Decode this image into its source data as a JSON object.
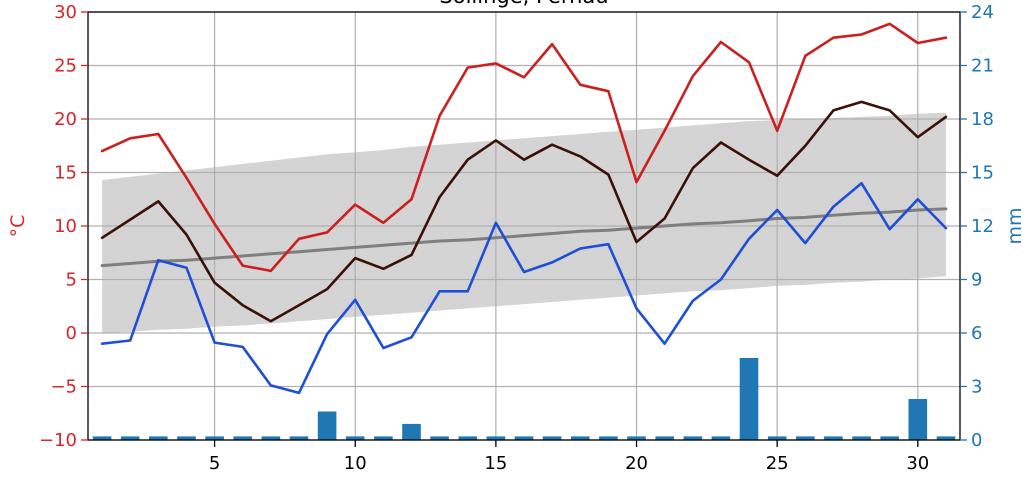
{
  "chart_data": {
    "type": "line",
    "title": "Söllinge, Pernau",
    "xlabel": "",
    "ylabel_left": "°C",
    "ylabel_right": "mm",
    "xlim": [
      0.5,
      31.5
    ],
    "ylim_left": [
      -10,
      30
    ],
    "ylim_right": [
      0,
      24
    ],
    "x_ticks": [
      5,
      10,
      15,
      20,
      25,
      30
    ],
    "y_ticks_left": [
      -10,
      -5,
      0,
      5,
      10,
      15,
      20,
      25,
      30
    ],
    "y_ticks_right": [
      0,
      3,
      6,
      9,
      12,
      15,
      18,
      21,
      24
    ],
    "grid": true,
    "x": [
      1,
      2,
      3,
      4,
      5,
      6,
      7,
      8,
      9,
      10,
      11,
      12,
      13,
      14,
      15,
      16,
      17,
      18,
      19,
      20,
      21,
      22,
      23,
      24,
      25,
      26,
      27,
      28,
      29,
      30,
      31
    ],
    "series": [
      {
        "key": "tmax",
        "axis": "left",
        "color": "#cc1f1f",
        "values": [
          17.0,
          18.2,
          18.6,
          14.5,
          10.2,
          6.3,
          5.8,
          8.8,
          9.4,
          12.0,
          10.3,
          12.5,
          20.3,
          24.8,
          25.2,
          23.9,
          27.0,
          23.2,
          22.6,
          14.1,
          18.9,
          24.0,
          27.2,
          25.3,
          18.9,
          25.9,
          27.6,
          27.9,
          28.9,
          27.1,
          27.6
        ]
      },
      {
        "key": "tmean",
        "axis": "left",
        "color": "#3a1205",
        "values": [
          8.9,
          10.6,
          12.3,
          9.2,
          4.7,
          2.6,
          1.1,
          2.6,
          4.1,
          7.0,
          6.0,
          7.3,
          12.7,
          16.2,
          18.0,
          16.2,
          17.6,
          16.5,
          14.8,
          8.5,
          10.7,
          15.4,
          17.8,
          16.2,
          14.7,
          17.5,
          20.8,
          21.6,
          20.8,
          18.3,
          20.2
        ]
      },
      {
        "key": "tmin",
        "axis": "left",
        "color": "#1f4fd6",
        "values": [
          -1.0,
          -0.7,
          6.8,
          6.1,
          -0.9,
          -1.3,
          -4.9,
          -5.6,
          -0.1,
          3.1,
          -1.4,
          -0.4,
          3.9,
          3.9,
          10.3,
          5.7,
          6.6,
          7.9,
          8.3,
          2.3,
          -1.0,
          3.0,
          5.0,
          8.8,
          11.5,
          8.4,
          11.8,
          14.0,
          9.7,
          12.5,
          9.8
        ]
      },
      {
        "key": "normal_mean",
        "axis": "left",
        "color": "#7f7f7f",
        "values": [
          6.3,
          6.5,
          6.7,
          6.8,
          7.0,
          7.2,
          7.4,
          7.6,
          7.8,
          8.0,
          8.2,
          8.4,
          8.6,
          8.7,
          8.9,
          9.1,
          9.3,
          9.5,
          9.6,
          9.8,
          10.0,
          10.2,
          10.3,
          10.5,
          10.7,
          10.8,
          11.0,
          11.2,
          11.3,
          11.5,
          11.6
        ]
      },
      {
        "key": "normal_low",
        "axis": "left",
        "band": true,
        "color": "#d4d4d4",
        "values": [
          0.0,
          0.1,
          0.3,
          0.4,
          0.6,
          0.7,
          0.9,
          1.1,
          1.3,
          1.5,
          1.7,
          1.9,
          2.1,
          2.3,
          2.5,
          2.7,
          2.9,
          3.1,
          3.3,
          3.5,
          3.7,
          3.9,
          4.0,
          4.2,
          4.4,
          4.5,
          4.7,
          4.8,
          5.0,
          5.1,
          5.3
        ]
      },
      {
        "key": "normal_high",
        "axis": "left",
        "band": true,
        "color": "#d4d4d4",
        "values": [
          14.3,
          14.6,
          14.9,
          15.2,
          15.5,
          15.8,
          16.1,
          16.4,
          16.7,
          16.9,
          17.1,
          17.4,
          17.6,
          17.8,
          18.0,
          18.2,
          18.4,
          18.6,
          18.8,
          19.0,
          19.2,
          19.4,
          19.6,
          19.8,
          19.9,
          20.0,
          20.1,
          20.2,
          20.3,
          20.5,
          20.6
        ]
      },
      {
        "key": "precipitation",
        "axis": "right",
        "type": "bar",
        "color": "#1f77b4",
        "values": [
          0.2,
          0.2,
          0.2,
          0.2,
          0.2,
          0.2,
          0.2,
          0.2,
          1.6,
          0.2,
          0.2,
          0.9,
          0.2,
          0.2,
          0.2,
          0.2,
          0.2,
          0.2,
          0.2,
          0.2,
          0.2,
          0.2,
          0.2,
          4.6,
          0.2,
          0.2,
          0.2,
          0.2,
          0.2,
          2.3,
          0.2
        ]
      }
    ]
  },
  "colors": {
    "left_axis": "#d62728",
    "right_axis": "#1f77b4",
    "grid": "#b0b0b0",
    "frame": "#000000"
  }
}
